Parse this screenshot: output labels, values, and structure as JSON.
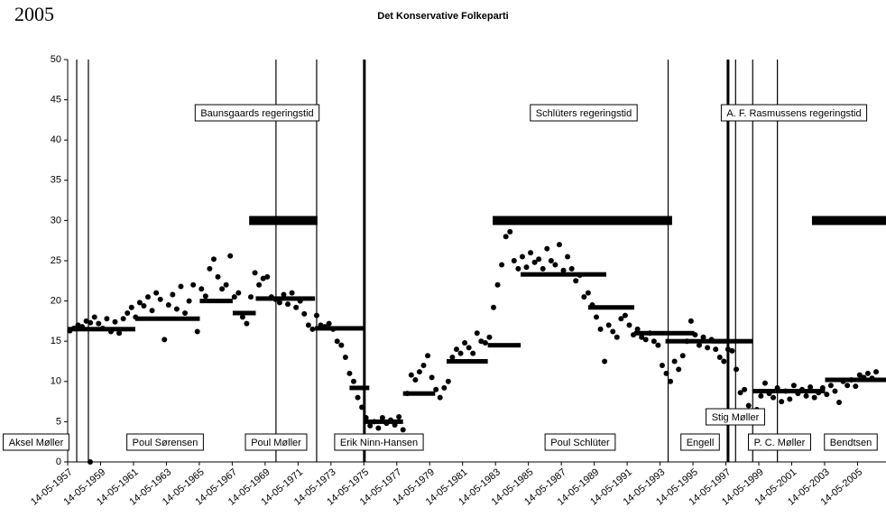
{
  "chart_data": {
    "type": "scatter",
    "year_label": "2005",
    "title": "Det Konservative Folkeparti",
    "color": "#000000",
    "xlim": [
      1957.37,
      2007.1
    ],
    "xticks": [
      {
        "value": 1957.37,
        "label": "14-05-1957"
      },
      {
        "value": 1959.37,
        "label": "14-05-1959"
      },
      {
        "value": 1961.37,
        "label": "14-05-1961"
      },
      {
        "value": 1963.37,
        "label": "14-05-1963"
      },
      {
        "value": 1965.37,
        "label": "14-05-1965"
      },
      {
        "value": 1967.37,
        "label": "14-05-1967"
      },
      {
        "value": 1969.37,
        "label": "14-05-1969"
      },
      {
        "value": 1971.37,
        "label": "14-05-1971"
      },
      {
        "value": 1973.37,
        "label": "14-05-1973"
      },
      {
        "value": 1975.37,
        "label": "14-05-1975"
      },
      {
        "value": 1977.37,
        "label": "14-05-1977"
      },
      {
        "value": 1979.37,
        "label": "14-05-1979"
      },
      {
        "value": 1981.37,
        "label": "14-05-1981"
      },
      {
        "value": 1983.37,
        "label": "14-05-1983"
      },
      {
        "value": 1985.37,
        "label": "14-05-1985"
      },
      {
        "value": 1987.37,
        "label": "14-05-1987"
      },
      {
        "value": 1989.37,
        "label": "14-05-1989"
      },
      {
        "value": 1991.37,
        "label": "14-05-1991"
      },
      {
        "value": 1993.37,
        "label": "14-05-1993"
      },
      {
        "value": 1995.37,
        "label": "14-05-1995"
      },
      {
        "value": 1997.37,
        "label": "14-05-1997"
      },
      {
        "value": 1999.37,
        "label": "14-05-1999"
      },
      {
        "value": 2001.37,
        "label": "14-05-2001"
      },
      {
        "value": 2003.37,
        "label": "14-05-2003"
      },
      {
        "value": 2005.37,
        "label": "14-05-2005"
      }
    ],
    "ylim": [
      0,
      50
    ],
    "yticks": [
      0,
      5,
      10,
      15,
      20,
      25,
      30,
      35,
      40,
      45,
      50
    ],
    "x": [
      1957.5,
      1957.75,
      1958,
      1958.25,
      1958.5,
      1958.75,
      1959,
      1959.25,
      1959.5,
      1959.75,
      1960,
      1960.25,
      1960.5,
      1960.75,
      1961,
      1961.25,
      1961.5,
      1961.75,
      1962,
      1962.25,
      1962.5,
      1962.75,
      1963,
      1963.25,
      1963.5,
      1963.75,
      1964,
      1964.25,
      1964.5,
      1964.75,
      1965,
      1965.25,
      1965.5,
      1965.75,
      1966,
      1966.25,
      1966.5,
      1966.75,
      1967,
      1967.25,
      1967.5,
      1967.75,
      1968,
      1968.25,
      1968.5,
      1968.75,
      1969,
      1969.25,
      1969.5,
      1969.75,
      1970,
      1970.25,
      1970.5,
      1970.75,
      1971,
      1971.25,
      1971.5,
      1971.75,
      1972,
      1972.25,
      1972.5,
      1972.75,
      1973,
      1973.25,
      1973.5,
      1973.75,
      1974,
      1974.25,
      1974.5,
      1974.75,
      1975,
      1975.25,
      1975.5,
      1975.75,
      1976,
      1976.25,
      1976.5,
      1976.75,
      1977,
      1977.25,
      1977.5,
      1977.75,
      1978,
      1978.25,
      1978.5,
      1978.75,
      1979,
      1979.25,
      1979.5,
      1979.75,
      1980,
      1980.25,
      1980.5,
      1980.75,
      1981,
      1981.25,
      1981.5,
      1981.75,
      1982,
      1982.25,
      1982.5,
      1982.75,
      1983,
      1983.25,
      1983.5,
      1983.75,
      1984,
      1984.25,
      1984.5,
      1984.75,
      1985,
      1985.25,
      1985.5,
      1985.75,
      1986,
      1986.25,
      1986.5,
      1986.75,
      1987,
      1987.25,
      1987.5,
      1987.75,
      1988,
      1988.25,
      1988.5,
      1988.75,
      1989,
      1989.25,
      1989.5,
      1989.75,
      1990,
      1990.25,
      1990.5,
      1990.75,
      1991,
      1991.25,
      1991.5,
      1991.75,
      1992,
      1992.25,
      1992.5,
      1992.75,
      1993,
      1993.25,
      1993.5,
      1993.75,
      1994,
      1994.25,
      1994.5,
      1994.75,
      1995,
      1995.25,
      1995.5,
      1995.75,
      1996,
      1996.25,
      1996.5,
      1996.75,
      1997,
      1997.25,
      1997.5,
      1997.75,
      1998,
      1998.25,
      1998.5,
      1998.75,
      1999,
      1999.25,
      1999.5,
      1999.75,
      2000,
      2000.25,
      2000.5,
      2000.75,
      2001,
      2001.25,
      2001.5,
      2001.75,
      2002,
      2002.25,
      2002.5,
      2002.75,
      2003,
      2003.25,
      2003.5,
      2003.75,
      2004,
      2004.25,
      2004.5,
      2004.75,
      2005,
      2005.25,
      2005.5,
      2005.75,
      2006,
      2006.25,
      2006.5,
      1958.74
    ],
    "values": [
      16.3,
      16.6,
      17.0,
      16.8,
      17.5,
      17.3,
      18.0,
      17.2,
      16.6,
      17.8,
      16.2,
      17.4,
      16.0,
      17.8,
      18.5,
      19.2,
      18.0,
      19.8,
      19.4,
      20.5,
      18.8,
      21.0,
      20.2,
      15.2,
      19.5,
      20.8,
      19.0,
      21.8,
      18.5,
      20.0,
      22.0,
      16.2,
      21.5,
      20.6,
      24.0,
      25.2,
      23.0,
      21.5,
      22.0,
      25.6,
      20.5,
      21.0,
      18.0,
      17.2,
      20.5,
      23.5,
      22.0,
      22.8,
      23.0,
      20.5,
      20.2,
      19.8,
      20.8,
      19.6,
      21.0,
      19.2,
      20.0,
      18.4,
      17.0,
      16.5,
      18.2,
      17.0,
      16.8,
      17.2,
      16.5,
      15.0,
      14.5,
      13.0,
      11.0,
      10.0,
      8.0,
      6.8,
      5.5,
      4.5,
      5.0,
      4.2,
      5.5,
      4.8,
      5.2,
      4.6,
      5.6,
      4.0,
      8.5,
      10.8,
      10.2,
      11.2,
      12.0,
      13.2,
      10.5,
      9.0,
      8.0,
      9.2,
      10.0,
      13.0,
      14.0,
      13.5,
      14.8,
      14.2,
      13.5,
      16.0,
      15.0,
      14.8,
      15.5,
      19.2,
      22.0,
      24.5,
      28.0,
      28.6,
      25.0,
      24.0,
      25.5,
      24.2,
      26.0,
      24.8,
      25.2,
      24.0,
      26.5,
      25.0,
      24.5,
      27.0,
      23.8,
      25.5,
      24.0,
      22.5,
      23.2,
      20.5,
      21.0,
      19.5,
      18.0,
      16.5,
      12.5,
      17.0,
      16.2,
      15.5,
      17.8,
      18.2,
      17.0,
      15.8,
      16.5,
      15.5,
      15.2,
      16.0,
      15.0,
      14.5,
      12.0,
      11.0,
      10.0,
      12.5,
      11.5,
      13.2,
      15.0,
      17.5,
      15.8,
      14.5,
      15.5,
      14.2,
      15.2,
      14.0,
      13.0,
      12.5,
      14.0,
      13.8,
      11.5,
      8.6,
      9.0,
      7.0,
      5.8,
      6.5,
      8.2,
      9.8,
      8.5,
      8.0,
      9.2,
      7.5,
      8.8,
      7.8,
      9.5,
      8.5,
      9.0,
      8.2,
      9.3,
      8.0,
      8.6,
      9.2,
      8.4,
      9.5,
      8.8,
      7.4,
      10.0,
      9.5,
      10.2,
      9.4,
      10.8,
      10.5,
      11.0,
      10.4,
      11.2,
      0
    ],
    "averages": [
      {
        "start": 1957.37,
        "end": 1961.48,
        "value": 16.5
      },
      {
        "start": 1961.48,
        "end": 1965.4,
        "value": 17.8
      },
      {
        "start": 1965.4,
        "end": 1967.4,
        "value": 20
      },
      {
        "start": 1967.4,
        "end": 1968.8,
        "value": 18.5
      },
      {
        "start": 1968.8,
        "end": 1972.4,
        "value": 20.3
      },
      {
        "start": 1972.4,
        "end": 1975.35,
        "value": 16.6
      },
      {
        "start": 1974.5,
        "end": 1975.7,
        "value": 9.2
      },
      {
        "start": 1975.35,
        "end": 1977.75,
        "value": 5
      },
      {
        "start": 1977.75,
        "end": 1979.7,
        "value": 8.5
      },
      {
        "start": 1980.4,
        "end": 1982.9,
        "value": 12.5
      },
      {
        "start": 1982.9,
        "end": 1984.9,
        "value": 14.5
      },
      {
        "start": 1984.9,
        "end": 1990.1,
        "value": 23.3
      },
      {
        "start": 1989,
        "end": 1991.8,
        "value": 19.2
      },
      {
        "start": 1991.8,
        "end": 1995.45,
        "value": 16
      },
      {
        "start": 1993.7,
        "end": 1997.5,
        "value": 15
      },
      {
        "start": 1996.5,
        "end": 1999,
        "value": 15
      },
      {
        "start": 1999,
        "end": 2000.4,
        "value": 8.8
      },
      {
        "start": 2000.4,
        "end": 2003.4,
        "value": 8.8
      },
      {
        "start": 2003.4,
        "end": 2007.1,
        "value": 10.2
      }
    ],
    "government": [
      {
        "start": 1968.4,
        "end": 1972.55,
        "value": 30
      },
      {
        "start": 1983.2,
        "end": 1994.1,
        "value": 30
      },
      {
        "start": 2002.6,
        "end": 2007.1,
        "value": 30
      }
    ],
    "vlines": [
      1957.92,
      1958.63,
      1970.03,
      1972.5,
      1993.86,
      1997.96,
      1999.0,
      2000.5
    ],
    "thick_vlines": [
      1975.4,
      1997.5
    ],
    "annotations": [
      "Baunsgaards regeringstid",
      "Schlüters regeringstid",
      "A. F. Rasmussens regeringstid",
      "Aksel Møller",
      "Poul Sørensen",
      "Poul Møller",
      "Erik Ninn-Hansen",
      "Poul Schlüter",
      "Engell",
      "Stig Møller",
      "P. C. Møller",
      "Bendtsen"
    ]
  }
}
